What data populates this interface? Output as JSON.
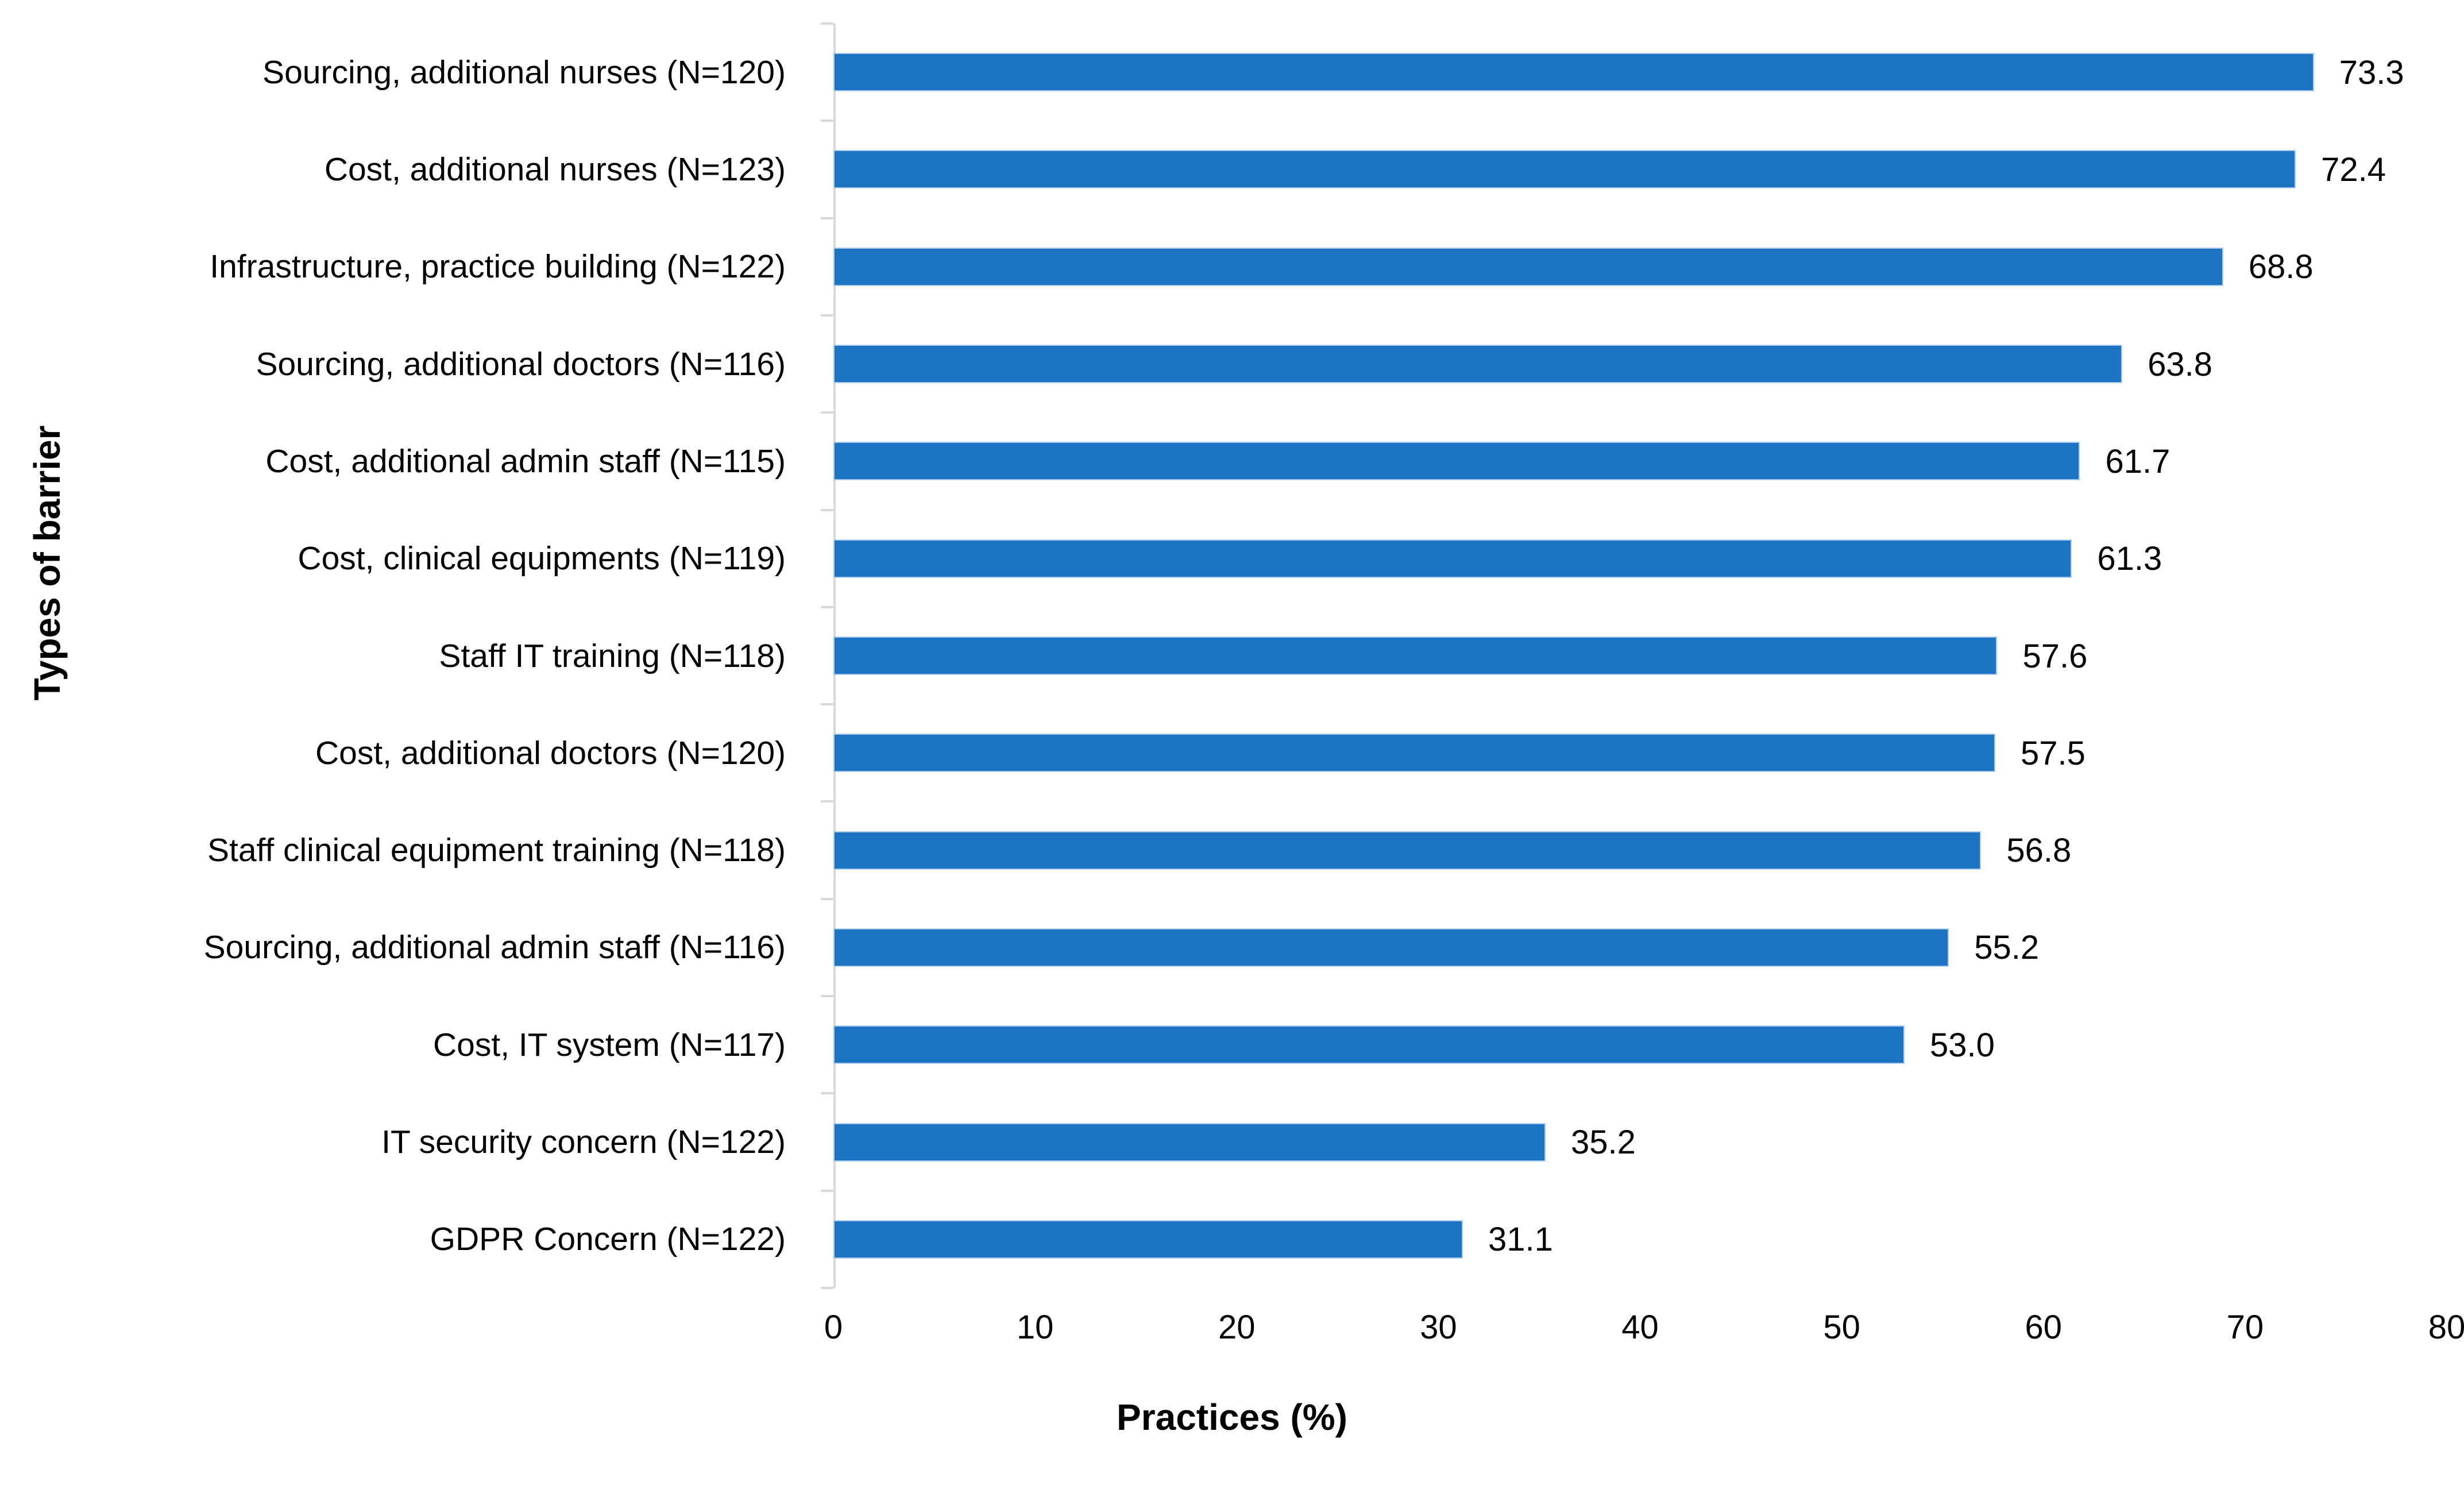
{
  "chart_data": {
    "type": "bar",
    "orientation": "horizontal",
    "title": "",
    "categories": [
      "Sourcing, additional nurses (N=120)",
      "Cost, additional nurses (N=123)",
      "Infrastructure, practice building (N=122)",
      "Sourcing, additional doctors (N=116)",
      "Cost, additional admin staff (N=115)",
      "Cost, clinical equipments (N=119)",
      "Staff IT training (N=118)",
      "Cost, additional doctors (N=120)",
      "Staff clinical equipment training (N=118)",
      "Sourcing, additional admin staff (N=116)",
      "Cost, IT system (N=117)",
      "IT security concern (N=122)",
      "GDPR Concern (N=122)"
    ],
    "values": [
      73.3,
      72.4,
      68.8,
      63.8,
      61.7,
      61.3,
      57.6,
      57.5,
      56.8,
      55.2,
      53.0,
      35.2,
      31.1
    ],
    "value_labels": [
      "73.3",
      "72.4",
      "68.8",
      "63.8",
      "61.7",
      "61.3",
      "57.6",
      "57.5",
      "56.8",
      "55.2",
      "53.0",
      "35.2",
      "31.1"
    ],
    "xlabel": "Practices (%)",
    "ylabel": "Types of barrier",
    "xlim": [
      0,
      80
    ],
    "xticks": [
      "0",
      "10",
      "20",
      "30",
      "40",
      "50",
      "60",
      "70",
      "80"
    ],
    "grid": false,
    "legend_position": "none",
    "data_labels_position": "outside-end",
    "colors": {
      "bar": "#1E72C2",
      "bar_edge": "#A9CDEC",
      "axis_line": "#D9D9D9",
      "text": "#000000",
      "background": "#FFFFFF"
    }
  }
}
